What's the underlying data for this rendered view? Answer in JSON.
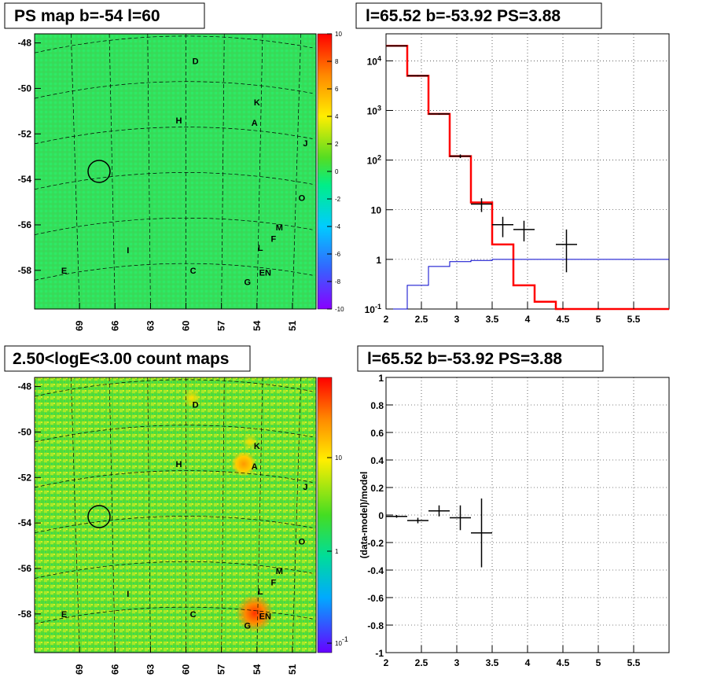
{
  "chart_data": [
    {
      "type": "heatmap",
      "title": "PS map b=-54 l=60",
      "x_ticks": [
        "69",
        "66",
        "63",
        "60",
        "57",
        "54",
        "51"
      ],
      "y_ticks": [
        "-48",
        "-50",
        "-52",
        "-54",
        "-56",
        "-58"
      ],
      "colorbar": {
        "min": -10,
        "max": 10,
        "ticks": [
          "10",
          "8",
          "6",
          "4",
          "2",
          "0",
          "-2",
          "-4",
          "-6",
          "-8",
          "-10"
        ]
      },
      "sources": [
        {
          "label": "D",
          "l": 59.2,
          "b": -48.6
        },
        {
          "label": "K",
          "l": 54.0,
          "b": -50.4
        },
        {
          "label": "H",
          "l": 60.6,
          "b": -51.2
        },
        {
          "label": "A",
          "l": 54.2,
          "b": -51.3
        },
        {
          "label": "J",
          "l": 49.9,
          "b": -52.2
        },
        {
          "label": "O",
          "l": 50.2,
          "b": -54.6
        },
        {
          "label": "M",
          "l": 52.1,
          "b": -55.9
        },
        {
          "label": "F",
          "l": 52.6,
          "b": -56.4
        },
        {
          "label": "L",
          "l": 53.7,
          "b": -56.8
        },
        {
          "label": "I",
          "l": 64.9,
          "b": -56.9
        },
        {
          "label": "E",
          "l": 70.3,
          "b": -57.8
        },
        {
          "label": "C",
          "l": 59.4,
          "b": -57.8
        },
        {
          "label": "EN",
          "l": 53.3,
          "b": -57.9
        },
        {
          "label": "G",
          "l": 54.8,
          "b": -58.3
        }
      ],
      "circle": {
        "l": 65.52,
        "b": -53.92
      }
    },
    {
      "type": "line",
      "title": "l=65.52 b=-53.92 PS=3.88",
      "x_ticks": [
        "2",
        "2.5",
        "3",
        "3.5",
        "4",
        "4.5",
        "5",
        "5.5"
      ],
      "y_ticks": [
        "10^-1",
        "1",
        "10",
        "10^2",
        "10^3",
        "10^4"
      ],
      "xlim": [
        2,
        6
      ],
      "ylim": [
        0.1,
        35000
      ],
      "yscale": "log",
      "series": [
        {
          "color": "#ff0000",
          "style": "step",
          "edges": [
            2,
            2.3,
            2.6,
            2.9,
            3.2,
            3.5,
            3.8,
            4.1,
            4.4,
            6
          ],
          "values": [
            20000,
            5000,
            850,
            120,
            14,
            2,
            0.3,
            0.14,
            0.1
          ]
        },
        {
          "color": "#0000cc",
          "style": "step",
          "edges": [
            2,
            2.3,
            2.6,
            2.9,
            3.2,
            3.5,
            6
          ],
          "values": [
            0.1,
            0.3,
            0.72,
            0.9,
            0.95,
            1.0
          ]
        },
        {
          "color": "#000000",
          "style": "points",
          "points": [
            {
              "x": 2.15,
              "y": 20000,
              "xerr": 0.15,
              "ylo": 19600,
              "yhi": 20400
            },
            {
              "x": 2.45,
              "y": 5000,
              "xerr": 0.15,
              "ylo": 4850,
              "yhi": 5150
            },
            {
              "x": 2.75,
              "y": 850,
              "xerr": 0.15,
              "ylo": 820,
              "yhi": 880
            },
            {
              "x": 3.05,
              "y": 120,
              "xerr": 0.15,
              "ylo": 110,
              "yhi": 130
            },
            {
              "x": 3.35,
              "y": 13,
              "xerr": 0.15,
              "ylo": 9,
              "yhi": 17
            },
            {
              "x": 3.65,
              "y": 5,
              "xerr": 0.15,
              "ylo": 2.8,
              "yhi": 7.2
            },
            {
              "x": 3.95,
              "y": 4,
              "xerr": 0.15,
              "ylo": 2.3,
              "yhi": 6
            },
            {
              "x": 4.55,
              "y": 2,
              "xerr": 0.15,
              "ylo": 0.55,
              "yhi": 4
            }
          ]
        }
      ]
    },
    {
      "type": "heatmap",
      "title": "2.50<logE<3.00 count maps",
      "x_ticks": [
        "69",
        "66",
        "63",
        "60",
        "57",
        "54",
        "51"
      ],
      "y_ticks": [
        "-48",
        "-50",
        "-52",
        "-54",
        "-56",
        "-58"
      ],
      "colorbar": {
        "scale": "log",
        "ticks": [
          "10",
          "1",
          "10^-1"
        ]
      },
      "circle": {
        "l": 65.52,
        "b": -53.92
      }
    },
    {
      "type": "scatter",
      "title": "l=65.52 b=-53.92 PS=3.88",
      "ylabel": "(data-model)/model",
      "x_ticks": [
        "2",
        "2.5",
        "3",
        "3.5",
        "4",
        "4.5",
        "5",
        "5.5"
      ],
      "y_ticks": [
        "1",
        "0.8",
        "0.6",
        "0.4",
        "0.2",
        "0",
        "-0.2",
        "-0.4",
        "-0.6",
        "-0.8",
        "-1"
      ],
      "xlim": [
        2,
        6
      ],
      "ylim": [
        -1,
        1
      ],
      "points": [
        {
          "x": 2.15,
          "y": -0.01,
          "xerr": 0.15,
          "yerr": 0.01
        },
        {
          "x": 2.45,
          "y": -0.04,
          "xerr": 0.15,
          "yerr": 0.02
        },
        {
          "x": 2.75,
          "y": 0.03,
          "xerr": 0.15,
          "yerr": 0.04
        },
        {
          "x": 3.05,
          "y": -0.02,
          "xerr": 0.15,
          "yerr": 0.09
        },
        {
          "x": 3.35,
          "y": -0.13,
          "xerr": 0.15,
          "yerr": 0.25
        }
      ]
    }
  ]
}
